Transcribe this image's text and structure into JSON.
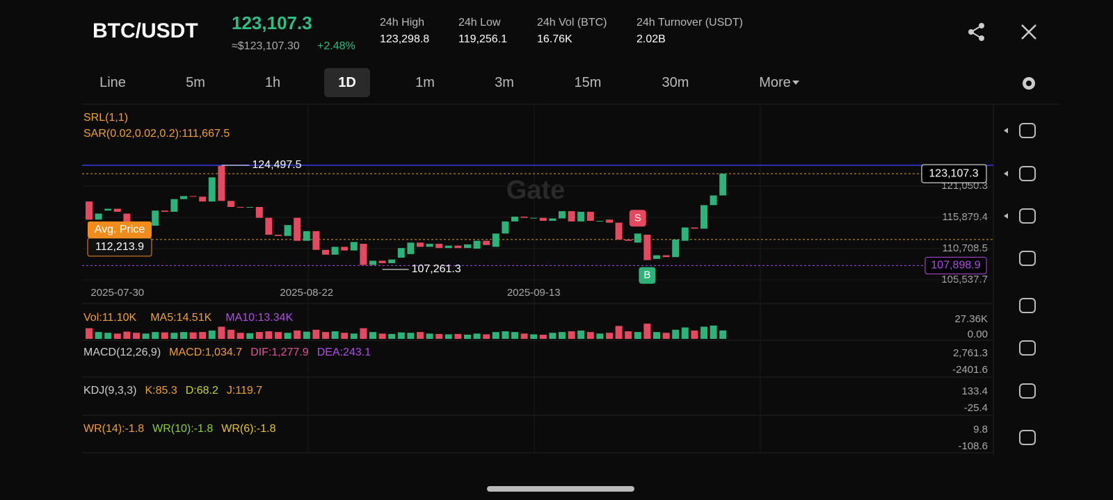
{
  "header": {
    "pair": "BTC/USDT",
    "price": "123,107.3",
    "fiat": "≈$123,107.30",
    "change": "+2.48%",
    "stats": [
      {
        "label": "24h High",
        "value": "123,298.8"
      },
      {
        "label": "24h Low",
        "value": "119,256.1"
      },
      {
        "label": "24h Vol (BTC)",
        "value": "16.76K"
      },
      {
        "label": "24h Turnover (USDT)",
        "value": "2.02B"
      }
    ]
  },
  "timeframes": [
    "Line",
    "5m",
    "1h",
    "1D",
    "1m",
    "3m",
    "15m",
    "30m",
    "More"
  ],
  "selected_timeframe": 3,
  "watermark": "Gate",
  "chart_data": {
    "type": "candlestick",
    "indicators": [
      "SRL(1,1)",
      "SAR(0.02,0.02,0.2):111,667.5"
    ],
    "categories": [
      null,
      null,
      null,
      "2025-07-30",
      null,
      null,
      null,
      null,
      null,
      null,
      null,
      null,
      null,
      null,
      null,
      null,
      null,
      null,
      null,
      null,
      null,
      null,
      null,
      "2025-08-22",
      null,
      null,
      null,
      null,
      null,
      null,
      null,
      null,
      null,
      null,
      null,
      null,
      null,
      null,
      null,
      null,
      null,
      null,
      null,
      null,
      null,
      null,
      null,
      "2025-09-13",
      null,
      null,
      null,
      null,
      null,
      null,
      null,
      null,
      null,
      null,
      null,
      null,
      null,
      null,
      null,
      null,
      null,
      null,
      null,
      null
    ],
    "open": [
      118500,
      115500,
      117000,
      117300,
      116500,
      114800,
      113800,
      114500,
      117000,
      116800,
      118900,
      119400,
      119300,
      118500,
      124400,
      118600,
      117600,
      117500,
      117600,
      115800,
      113000,
      112800,
      115800,
      112000,
      113600,
      110500,
      109700,
      111000,
      110400,
      111500,
      108000,
      108700,
      108300,
      109200,
      109800,
      111700,
      111000,
      111500,
      110800,
      111200,
      110800,
      110700,
      112000,
      111000,
      113200,
      115200,
      116000,
      115800,
      115800,
      115300,
      115700,
      116900,
      115200,
      116800,
      115300,
      115500,
      115000,
      112200,
      111700,
      113000,
      109000,
      109600,
      109300,
      112000,
      114200,
      114000,
      117900,
      119500
    ],
    "close": [
      115500,
      116500,
      117300,
      116800,
      114800,
      113800,
      115000,
      117000,
      116800,
      118900,
      119400,
      119300,
      118500,
      122500,
      118600,
      117600,
      117500,
      117600,
      115800,
      113000,
      112800,
      114600,
      112000,
      113600,
      110500,
      109700,
      111000,
      110400,
      111800,
      108000,
      108700,
      108300,
      108900,
      110800,
      111700,
      111000,
      111500,
      110800,
      111200,
      110800,
      111400,
      112000,
      111300,
      113200,
      115200,
      116000,
      115800,
      115800,
      115300,
      115700,
      116900,
      115200,
      116800,
      115300,
      115300,
      115000,
      112200,
      112000,
      113200,
      108800,
      109600,
      109300,
      112200,
      114200,
      114000,
      117900,
      119500,
      123107.3
    ],
    "up_color": "#2eb27a",
    "down_color": "#e5495f",
    "ylim": [
      102430,
      134610
    ],
    "yticks": [
      {
        "value": 121050.3,
        "label": "121,050.3"
      },
      {
        "value": 115879.4,
        "label": "115,879.4"
      },
      {
        "value": 110708.5,
        "label": "110,708.5"
      },
      {
        "value": 105537.7,
        "label": "105,537.7"
      }
    ],
    "high_marker": {
      "value": 124497.5,
      "label": "124,497.5",
      "index": 14
    },
    "low_marker": {
      "value": 107261.3,
      "label": "107,261.3",
      "index": 31
    },
    "last_price": {
      "value": 123107.3,
      "label": "123,107.3"
    },
    "avg_price": {
      "name": "Avg. Price",
      "value": 112213.9,
      "label": "112,213.9"
    },
    "level": {
      "value": 107898.9,
      "label": "107,898.9"
    },
    "signals": [
      {
        "label": "S",
        "index": 58
      },
      {
        "label": "B",
        "index": 59
      }
    ],
    "volume": {
      "labels": [
        {
          "text": "Vol:11.10K",
          "color": "#f0a03c"
        },
        {
          "text": "MA5:14.51K",
          "color": "#f0a03c"
        },
        {
          "text": "MA10:13.34K",
          "color": "#b04fe0"
        }
      ],
      "values": [
        14000,
        9000,
        8000,
        7000,
        9500,
        8000,
        7000,
        9000,
        8500,
        8000,
        9000,
        8500,
        9000,
        11000,
        16000,
        12000,
        8000,
        7500,
        9000,
        10000,
        9000,
        8000,
        11000,
        9500,
        12000,
        9000,
        10000,
        8000,
        7000,
        14000,
        9000,
        7000,
        6500,
        8500,
        8000,
        9000,
        7000,
        6500,
        6000,
        6500,
        5500,
        7000,
        6000,
        9000,
        10000,
        9000,
        7000,
        6000,
        5500,
        8000,
        9000,
        10000,
        11000,
        9000,
        7000,
        8000,
        17000,
        10000,
        9000,
        20000,
        9000,
        8000,
        12000,
        15000,
        11000,
        16000,
        17500,
        11100
      ],
      "ylim": [
        0,
        27360
      ],
      "yticks": [
        {
          "value": 27360,
          "label": "27.36K"
        },
        {
          "value": 0,
          "label": "0.00"
        }
      ]
    }
  },
  "panels": [
    {
      "labels": [
        {
          "text": "MACD(12,26,9)",
          "color": "#cfcfcf"
        },
        {
          "text": "MACD:1,034.7",
          "color": "#f0a03c"
        },
        {
          "text": "DIF:1,277.9",
          "color": "#e0559a"
        },
        {
          "text": "DEA:243.1",
          "color": "#b04fe0"
        }
      ],
      "ticks": [
        "2,761.3",
        "-2401.6"
      ]
    },
    {
      "labels": [
        {
          "text": "KDJ(9,3,3)",
          "color": "#cfcfcf"
        },
        {
          "text": "K:85.3",
          "color": "#f0a03c"
        },
        {
          "text": "D:68.2",
          "color": "#c8d33a"
        },
        {
          "text": "J:119.7",
          "color": "#e8a33a"
        }
      ],
      "ticks": [
        "133.4",
        "-25.4"
      ]
    },
    {
      "labels": [
        {
          "text": "WR(14):-1.8",
          "color": "#f0a03c"
        },
        {
          "text": "WR(10):-1.8",
          "color": "#8fd13a"
        },
        {
          "text": "WR(6):-1.8",
          "color": "#e8c33a"
        }
      ],
      "ticks": [
        "9.8",
        "-108.6"
      ]
    }
  ]
}
